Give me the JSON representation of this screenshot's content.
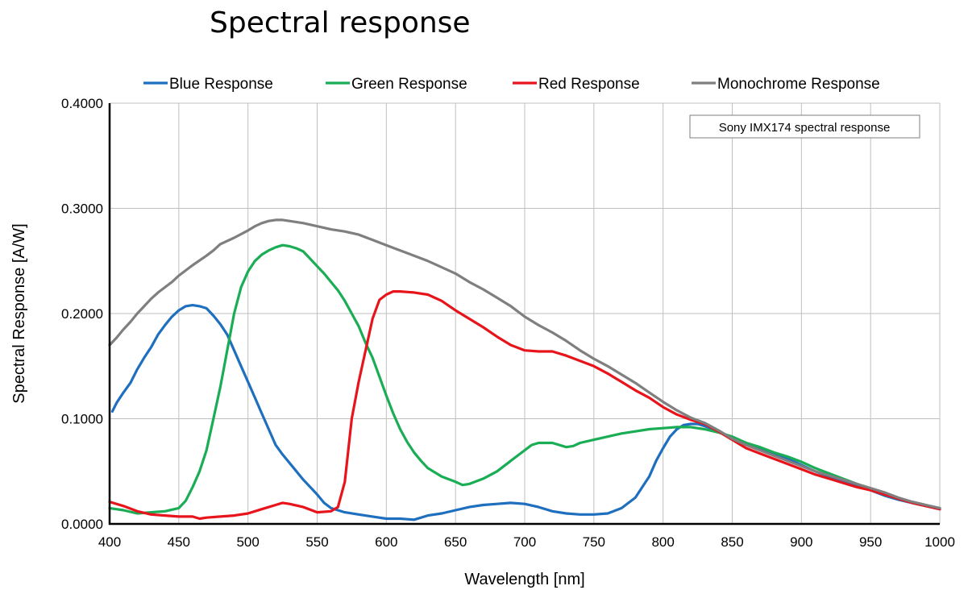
{
  "chart_data": {
    "type": "line",
    "title": "Spectral response",
    "xlabel": "Wavelength [nm]",
    "ylabel": "Spectral Response [A/W]",
    "xlim": [
      400,
      1000
    ],
    "ylim": [
      0,
      0.4
    ],
    "x_ticks": [
      "400",
      "450",
      "500",
      "550",
      "600",
      "650",
      "700",
      "750",
      "800",
      "850",
      "900",
      "950",
      "1000"
    ],
    "y_ticks": [
      "0.0000",
      "0.1000",
      "0.2000",
      "0.3000",
      "0.4000"
    ],
    "grid": true,
    "legend_position": "top",
    "annotation": "Sony IMX174 spectral response",
    "series": [
      {
        "name": "Blue Response",
        "color": "#1f6fbf",
        "x": [
          402,
          405,
          410,
          415,
          420,
          425,
          430,
          435,
          440,
          445,
          450,
          455,
          460,
          465,
          470,
          475,
          480,
          485,
          490,
          495,
          500,
          505,
          510,
          515,
          520,
          525,
          530,
          535,
          540,
          545,
          550,
          555,
          560,
          570,
          580,
          590,
          600,
          610,
          620,
          630,
          640,
          650,
          660,
          670,
          680,
          690,
          700,
          710,
          720,
          730,
          740,
          750,
          760,
          770,
          780,
          785,
          790,
          795,
          800,
          805,
          810,
          815,
          820,
          825,
          830,
          840,
          850,
          860,
          870,
          880,
          890,
          900,
          910,
          920,
          930,
          940,
          950,
          960,
          970,
          980,
          990,
          1000
        ],
        "y": [
          0.107,
          0.115,
          0.125,
          0.134,
          0.147,
          0.158,
          0.168,
          0.18,
          0.189,
          0.197,
          0.203,
          0.207,
          0.208,
          0.207,
          0.205,
          0.198,
          0.19,
          0.18,
          0.165,
          0.15,
          0.135,
          0.12,
          0.105,
          0.09,
          0.075,
          0.066,
          0.058,
          0.05,
          0.042,
          0.035,
          0.028,
          0.02,
          0.015,
          0.011,
          0.009,
          0.007,
          0.005,
          0.005,
          0.004,
          0.008,
          0.01,
          0.013,
          0.016,
          0.018,
          0.019,
          0.02,
          0.019,
          0.016,
          0.012,
          0.01,
          0.009,
          0.009,
          0.01,
          0.015,
          0.025,
          0.035,
          0.045,
          0.06,
          0.072,
          0.083,
          0.09,
          0.094,
          0.095,
          0.095,
          0.093,
          0.088,
          0.082,
          0.077,
          0.072,
          0.067,
          0.062,
          0.056,
          0.05,
          0.045,
          0.04,
          0.036,
          0.032,
          0.027,
          0.023,
          0.02,
          0.017,
          0.014
        ]
      },
      {
        "name": "Green Response",
        "color": "#1aad55",
        "x": [
          400,
          410,
          420,
          430,
          440,
          450,
          455,
          460,
          465,
          470,
          475,
          480,
          485,
          490,
          495,
          500,
          505,
          510,
          515,
          520,
          525,
          530,
          535,
          540,
          545,
          550,
          555,
          560,
          565,
          570,
          575,
          580,
          585,
          590,
          595,
          600,
          605,
          610,
          615,
          620,
          625,
          630,
          640,
          650,
          655,
          660,
          670,
          680,
          690,
          700,
          705,
          710,
          720,
          730,
          735,
          740,
          750,
          760,
          770,
          780,
          790,
          800,
          810,
          820,
          830,
          840,
          850,
          860,
          870,
          880,
          890,
          900,
          910,
          920,
          930,
          940,
          950,
          960,
          970,
          980,
          990,
          1000
        ],
        "y": [
          0.015,
          0.013,
          0.01,
          0.011,
          0.012,
          0.015,
          0.022,
          0.035,
          0.05,
          0.07,
          0.1,
          0.13,
          0.165,
          0.2,
          0.225,
          0.24,
          0.25,
          0.256,
          0.26,
          0.263,
          0.265,
          0.264,
          0.262,
          0.259,
          0.252,
          0.245,
          0.238,
          0.23,
          0.222,
          0.212,
          0.2,
          0.188,
          0.172,
          0.158,
          0.14,
          0.122,
          0.105,
          0.09,
          0.078,
          0.068,
          0.06,
          0.053,
          0.045,
          0.04,
          0.037,
          0.038,
          0.043,
          0.05,
          0.06,
          0.07,
          0.075,
          0.077,
          0.077,
          0.073,
          0.074,
          0.077,
          0.08,
          0.083,
          0.086,
          0.088,
          0.09,
          0.091,
          0.092,
          0.092,
          0.09,
          0.087,
          0.083,
          0.077,
          0.073,
          0.068,
          0.064,
          0.059,
          0.053,
          0.048,
          0.043,
          0.038,
          0.033,
          0.028,
          0.024,
          0.02,
          0.017,
          0.015
        ]
      },
      {
        "name": "Red Response",
        "color": "#e8141c",
        "x": [
          400,
          410,
          420,
          430,
          440,
          450,
          460,
          465,
          470,
          480,
          490,
          500,
          510,
          520,
          525,
          530,
          540,
          550,
          560,
          565,
          570,
          575,
          580,
          585,
          590,
          595,
          600,
          605,
          610,
          620,
          630,
          640,
          650,
          660,
          670,
          680,
          690,
          700,
          710,
          720,
          730,
          740,
          750,
          760,
          770,
          780,
          790,
          800,
          810,
          820,
          830,
          840,
          850,
          860,
          870,
          880,
          890,
          900,
          910,
          920,
          930,
          940,
          950,
          960,
          970,
          980,
          990,
          1000
        ],
        "y": [
          0.021,
          0.017,
          0.012,
          0.009,
          0.008,
          0.007,
          0.007,
          0.005,
          0.006,
          0.007,
          0.008,
          0.01,
          0.014,
          0.018,
          0.02,
          0.019,
          0.016,
          0.011,
          0.012,
          0.016,
          0.04,
          0.1,
          0.135,
          0.165,
          0.195,
          0.213,
          0.218,
          0.221,
          0.221,
          0.22,
          0.218,
          0.212,
          0.203,
          0.195,
          0.187,
          0.178,
          0.17,
          0.165,
          0.164,
          0.164,
          0.16,
          0.155,
          0.15,
          0.143,
          0.135,
          0.127,
          0.12,
          0.111,
          0.104,
          0.099,
          0.095,
          0.088,
          0.08,
          0.072,
          0.067,
          0.062,
          0.057,
          0.052,
          0.047,
          0.043,
          0.039,
          0.035,
          0.032,
          0.028,
          0.024,
          0.02,
          0.017,
          0.014
        ]
      },
      {
        "name": "Monochrome Response",
        "color": "#7f7f7f",
        "x": [
          400,
          405,
          410,
          415,
          420,
          425,
          430,
          435,
          440,
          445,
          450,
          460,
          470,
          475,
          480,
          490,
          500,
          505,
          510,
          515,
          520,
          525,
          530,
          540,
          550,
          560,
          570,
          580,
          590,
          600,
          610,
          620,
          630,
          640,
          650,
          660,
          670,
          680,
          690,
          700,
          710,
          720,
          730,
          740,
          750,
          760,
          770,
          780,
          790,
          800,
          810,
          820,
          830,
          840,
          850,
          860,
          870,
          880,
          890,
          900,
          910,
          920,
          930,
          940,
          950,
          960,
          970,
          980,
          990,
          1000
        ],
        "y": [
          0.17,
          0.177,
          0.185,
          0.192,
          0.2,
          0.207,
          0.214,
          0.22,
          0.225,
          0.23,
          0.236,
          0.246,
          0.255,
          0.26,
          0.266,
          0.272,
          0.279,
          0.283,
          0.286,
          0.288,
          0.289,
          0.289,
          0.288,
          0.286,
          0.283,
          0.28,
          0.278,
          0.275,
          0.27,
          0.265,
          0.26,
          0.255,
          0.25,
          0.244,
          0.238,
          0.23,
          0.223,
          0.215,
          0.207,
          0.197,
          0.189,
          0.182,
          0.174,
          0.165,
          0.157,
          0.15,
          0.142,
          0.134,
          0.125,
          0.116,
          0.108,
          0.101,
          0.096,
          0.089,
          0.081,
          0.075,
          0.07,
          0.065,
          0.06,
          0.055,
          0.05,
          0.046,
          0.042,
          0.038,
          0.034,
          0.03,
          0.025,
          0.021,
          0.018,
          0.015
        ]
      }
    ]
  }
}
